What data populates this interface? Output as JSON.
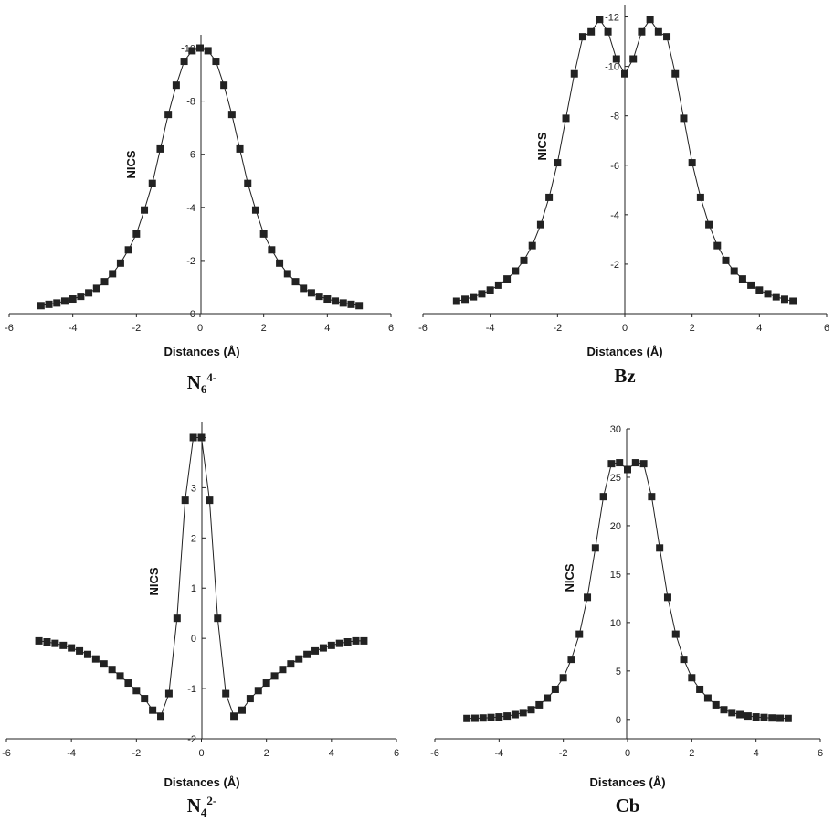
{
  "colors": {
    "marker": "#222222",
    "line": "#222222",
    "axis": "#222222",
    "background": "#ffffff"
  },
  "chart_data": [
    {
      "type": "line",
      "panel": "top-left",
      "caption": {
        "base": "N",
        "sub": "6",
        "sup": "4-"
      },
      "xlabel": "Distances (Å)",
      "ylabel": "NICS",
      "xlim": [
        -6,
        6
      ],
      "ylim": [
        0,
        -10.5
      ],
      "reversed_y": true,
      "xticks": [
        -6,
        -4,
        -2,
        0,
        2,
        4,
        6
      ],
      "yticks": [
        0,
        -2,
        -4,
        -6,
        -8,
        -10
      ],
      "marker": "square",
      "series": [
        {
          "x": [
            -5.0,
            -4.75,
            -4.5,
            -4.25,
            -4.0,
            -3.75,
            -3.5,
            -3.25,
            -3.0,
            -2.75,
            -2.5,
            -2.25,
            -2.0,
            -1.75,
            -1.5,
            -1.25,
            -1.0,
            -0.75,
            -0.5,
            -0.25,
            0.0,
            0.25,
            0.5,
            0.75,
            1.0,
            1.25,
            1.5,
            1.75,
            2.0,
            2.25,
            2.5,
            2.75,
            3.0,
            3.25,
            3.5,
            3.75,
            4.0,
            4.25,
            4.5,
            4.75,
            5.0
          ],
          "y": [
            -0.3,
            -0.35,
            -0.4,
            -0.47,
            -0.55,
            -0.65,
            -0.78,
            -0.95,
            -1.2,
            -1.5,
            -1.9,
            -2.4,
            -3.0,
            -3.9,
            -4.9,
            -6.2,
            -7.5,
            -8.6,
            -9.5,
            -9.9,
            -10.0,
            -9.9,
            -9.5,
            -8.6,
            -7.5,
            -6.2,
            -4.9,
            -3.9,
            -3.0,
            -2.4,
            -1.9,
            -1.5,
            -1.2,
            -0.95,
            -0.78,
            -0.65,
            -0.55,
            -0.47,
            -0.4,
            -0.35,
            -0.3
          ]
        }
      ]
    },
    {
      "type": "line",
      "panel": "top-right",
      "caption": {
        "base": "Bz",
        "sub": "",
        "sup": ""
      },
      "xlabel": "Distances (Å)",
      "ylabel": "NICS",
      "xlim": [
        -6,
        6
      ],
      "ylim": [
        0,
        -12.5
      ],
      "reversed_y": true,
      "xticks": [
        -6,
        -4,
        -2,
        0,
        2,
        4,
        6
      ],
      "yticks": [
        -2,
        -4,
        -6,
        -8,
        -10,
        -12
      ],
      "marker": "square",
      "series": [
        {
          "x": [
            -5.0,
            -4.75,
            -4.5,
            -4.25,
            -4.0,
            -3.75,
            -3.5,
            -3.25,
            -3.0,
            -2.75,
            -2.5,
            -2.25,
            -2.0,
            -1.75,
            -1.5,
            -1.25,
            -1.0,
            -0.75,
            -0.5,
            -0.25,
            0.0,
            0.25,
            0.5,
            0.75,
            1.0,
            1.25,
            1.5,
            1.75,
            2.0,
            2.25,
            2.5,
            2.75,
            3.0,
            3.25,
            3.5,
            3.75,
            4.0,
            4.25,
            4.5,
            4.75,
            5.0
          ],
          "y": [
            -0.5,
            -0.58,
            -0.68,
            -0.8,
            -0.95,
            -1.15,
            -1.4,
            -1.72,
            -2.15,
            -2.75,
            -3.6,
            -4.7,
            -6.1,
            -7.9,
            -9.7,
            -11.2,
            -11.4,
            -11.9,
            -11.4,
            -10.3,
            -9.7,
            -10.3,
            -11.4,
            -11.9,
            -11.4,
            -11.2,
            -9.7,
            -7.9,
            -6.1,
            -4.7,
            -3.6,
            -2.75,
            -2.15,
            -1.72,
            -1.4,
            -1.15,
            -0.95,
            -0.8,
            -0.68,
            -0.58,
            -0.5
          ]
        }
      ]
    },
    {
      "type": "line",
      "panel": "bottom-left",
      "caption": {
        "base": "N",
        "sub": "4",
        "sup": "2-"
      },
      "xlabel": "Distances (Å)",
      "ylabel": "NICS",
      "xlim": [
        -6,
        6
      ],
      "ylim": [
        -2,
        4.3
      ],
      "reversed_y": false,
      "xticks": [
        -6,
        -4,
        -2,
        0,
        2,
        4,
        6
      ],
      "yticks": [
        -2,
        -1,
        0,
        1,
        2,
        3,
        4
      ],
      "marker": "square",
      "series": [
        {
          "x": [
            -5.0,
            -4.75,
            -4.5,
            -4.25,
            -4.0,
            -3.75,
            -3.5,
            -3.25,
            -3.0,
            -2.75,
            -2.5,
            -2.25,
            -2.0,
            -1.75,
            -1.5,
            -1.25,
            -1.0,
            -0.75,
            -0.5,
            -0.25,
            0.0,
            0.25,
            0.5,
            0.75,
            1.0,
            1.25,
            1.5,
            1.75,
            2.0,
            2.25,
            2.5,
            2.75,
            3.0,
            3.25,
            3.5,
            3.75,
            4.0,
            4.25,
            4.5,
            4.75,
            5.0
          ],
          "y": [
            -0.05,
            -0.07,
            -0.1,
            -0.14,
            -0.19,
            -0.25,
            -0.32,
            -0.41,
            -0.51,
            -0.62,
            -0.75,
            -0.89,
            -1.04,
            -1.2,
            -1.43,
            -1.55,
            -1.1,
            0.4,
            2.75,
            4.0,
            4.0,
            2.75,
            0.4,
            -1.1,
            -1.55,
            -1.43,
            -1.2,
            -1.04,
            -0.89,
            -0.75,
            -0.62,
            -0.51,
            -0.41,
            -0.32,
            -0.25,
            -0.19,
            -0.14,
            -0.1,
            -0.07,
            -0.05,
            -0.05
          ]
        }
      ]
    },
    {
      "type": "line",
      "panel": "bottom-right",
      "caption": {
        "base": "Cb",
        "sub": "",
        "sup": ""
      },
      "xlabel": "Distances (Å)",
      "ylabel": "NICS",
      "xlim": [
        -6,
        6
      ],
      "ylim": [
        -2,
        30
      ],
      "reversed_y": false,
      "xticks": [
        -6,
        -4,
        -2,
        0,
        2,
        4,
        6
      ],
      "yticks": [
        0,
        5,
        10,
        15,
        20,
        25,
        30
      ],
      "marker": "square",
      "series": [
        {
          "x": [
            -5.0,
            -4.75,
            -4.5,
            -4.25,
            -4.0,
            -3.75,
            -3.5,
            -3.25,
            -3.0,
            -2.75,
            -2.5,
            -2.25,
            -2.0,
            -1.75,
            -1.5,
            -1.25,
            -1.0,
            -0.75,
            -0.5,
            -0.25,
            0.0,
            0.25,
            0.5,
            0.75,
            1.0,
            1.25,
            1.5,
            1.75,
            2.0,
            2.25,
            2.5,
            2.75,
            3.0,
            3.25,
            3.5,
            3.75,
            4.0,
            4.25,
            4.5,
            4.75,
            5.0
          ],
          "y": [
            0.1,
            0.12,
            0.15,
            0.2,
            0.26,
            0.35,
            0.5,
            0.7,
            1.0,
            1.5,
            2.2,
            3.1,
            4.3,
            6.2,
            8.8,
            12.6,
            17.7,
            23.0,
            26.4,
            26.5,
            25.8,
            26.5,
            26.4,
            23.0,
            17.7,
            12.6,
            8.8,
            6.2,
            4.3,
            3.1,
            2.2,
            1.5,
            1.0,
            0.7,
            0.5,
            0.35,
            0.26,
            0.2,
            0.15,
            0.12,
            0.1
          ]
        }
      ]
    }
  ]
}
